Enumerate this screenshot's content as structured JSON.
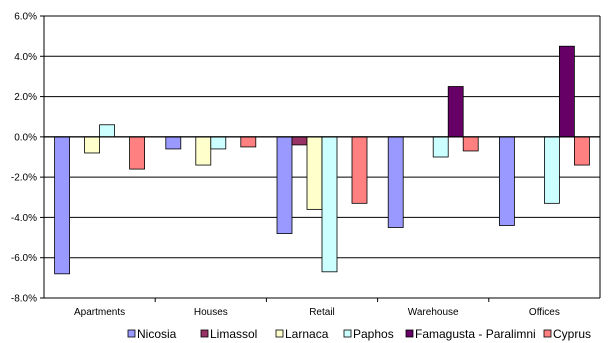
{
  "chart_data": {
    "type": "bar",
    "categories": [
      "Apartments",
      "Houses",
      "Retail",
      "Warehouse",
      "Offices"
    ],
    "series": [
      {
        "name": "Nicosia",
        "color": "#9999FF",
        "values": [
          -6.8,
          -0.6,
          -4.8,
          -4.5,
          -4.4
        ]
      },
      {
        "name": "Limassol",
        "color": "#993366",
        "values": [
          0.0,
          0.0,
          -0.4,
          0.0,
          0.0
        ]
      },
      {
        "name": "Larnaca",
        "color": "#FFFFCC",
        "values": [
          -0.8,
          -1.4,
          -3.6,
          0.0,
          0.0
        ]
      },
      {
        "name": "Paphos",
        "color": "#CCFFFF",
        "values": [
          0.6,
          -0.6,
          -6.7,
          -1.0,
          -3.3
        ]
      },
      {
        "name": "Famagusta - Paralimni",
        "color": "#660066",
        "values": [
          0.0,
          0.0,
          0.0,
          2.5,
          4.5
        ]
      },
      {
        "name": "Cyprus",
        "color": "#FF8080",
        "values": [
          -1.6,
          -0.5,
          -3.3,
          -0.7,
          -1.4
        ]
      }
    ],
    "ylim": [
      -8,
      6
    ],
    "yticks": [
      "6.0%",
      "4.0%",
      "2.0%",
      "0.0%",
      "-2.0%",
      "-4.0%",
      "-6.0%",
      "-8.0%"
    ],
    "ytick_values": [
      6,
      4,
      2,
      0,
      -2,
      -4,
      -6,
      -8
    ],
    "grid": true,
    "legend_position": "bottom"
  }
}
